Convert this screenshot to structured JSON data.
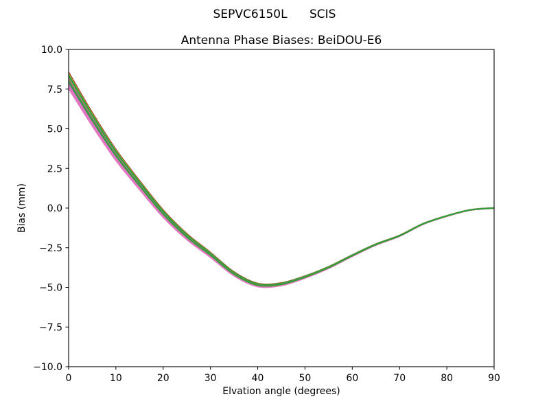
{
  "figure": {
    "suptitle": "SEPVC6150L      SCIS",
    "background": "#ffffff"
  },
  "chart_data": {
    "type": "line",
    "title": "Antenna Phase Biases: BeiDOU-E6",
    "xlabel": "Elvation angle (degrees)",
    "ylabel": "Bias (mm)",
    "xlim": [
      0,
      90
    ],
    "ylim": [
      -10.0,
      10.0
    ],
    "grid": false,
    "legend_position": "none",
    "xticks": [
      {
        "v": 0,
        "label": "0"
      },
      {
        "v": 10,
        "label": "10"
      },
      {
        "v": 20,
        "label": "20"
      },
      {
        "v": 30,
        "label": "30"
      },
      {
        "v": 40,
        "label": "40"
      },
      {
        "v": 50,
        "label": "50"
      },
      {
        "v": 60,
        "label": "60"
      },
      {
        "v": 70,
        "label": "70"
      },
      {
        "v": 80,
        "label": "80"
      },
      {
        "v": 90,
        "label": "90"
      }
    ],
    "yticks": [
      {
        "v": 10.0,
        "label": "10.0"
      },
      {
        "v": 7.5,
        "label": "7.5"
      },
      {
        "v": 5.0,
        "label": "5.0"
      },
      {
        "v": 2.5,
        "label": "2.5"
      },
      {
        "v": 0.0,
        "label": "0.0"
      },
      {
        "v": -2.5,
        "label": "−2.5"
      },
      {
        "v": -5.0,
        "label": "−5.0"
      },
      {
        "v": -7.5,
        "label": "−7.5"
      },
      {
        "v": -10.0,
        "label": "−10.0"
      }
    ],
    "x_deg": [
      0,
      5,
      10,
      15,
      20,
      25,
      30,
      35,
      40,
      45,
      50,
      55,
      60,
      65,
      70,
      75,
      80,
      85,
      90
    ],
    "mean_bias_mm": [
      8.05,
      5.6,
      3.35,
      1.45,
      -0.35,
      -1.8,
      -2.95,
      -4.15,
      -4.85,
      -4.8,
      -4.35,
      -3.75,
      -3.0,
      -2.3,
      -1.75,
      -1.0,
      -0.5,
      -0.12,
      0.0
    ],
    "zero_crossing_deg": 19,
    "minimum": {
      "elevation_deg": 41,
      "bias_mm": -4.87
    },
    "band_spread_mm_at_0deg": 1.1,
    "spread_decay_deg": 25,
    "series": [
      {
        "name": "line-blue",
        "color": "#1f77b4",
        "offset_mm": 0.22
      },
      {
        "name": "line-orange",
        "color": "#ff7f0e",
        "offset_mm": 0.12
      },
      {
        "name": "line-red",
        "color": "#d62728",
        "offset_mm": 0.52
      },
      {
        "name": "line-brown",
        "color": "#8c564b",
        "offset_mm": 0.48
      },
      {
        "name": "line-olive",
        "color": "#bcbd22",
        "offset_mm": 0.4
      },
      {
        "name": "line-cyan",
        "color": "#17becf",
        "offset_mm": 0.3
      },
      {
        "name": "line-purple",
        "color": "#9467bd",
        "offset_mm": -0.38
      },
      {
        "name": "line-purple-2",
        "color": "#9467bd",
        "offset_mm": -0.2
      },
      {
        "name": "line-pink",
        "color": "#e377c2",
        "offset_mm": -0.52
      },
      {
        "name": "line-pink-2",
        "color": "#e377c2",
        "offset_mm": -0.3
      },
      {
        "name": "line-green",
        "color": "#2ca02c",
        "offset_mm": 0.34
      },
      {
        "name": "line-pink-3",
        "color": "#e377c2",
        "offset_mm": -0.45
      },
      {
        "name": "line-gray",
        "color": "#7f7f7f",
        "offset_mm": 0.06
      },
      {
        "name": "line-green-2",
        "color": "#2ca02c",
        "offset_mm": -0.08
      }
    ]
  }
}
